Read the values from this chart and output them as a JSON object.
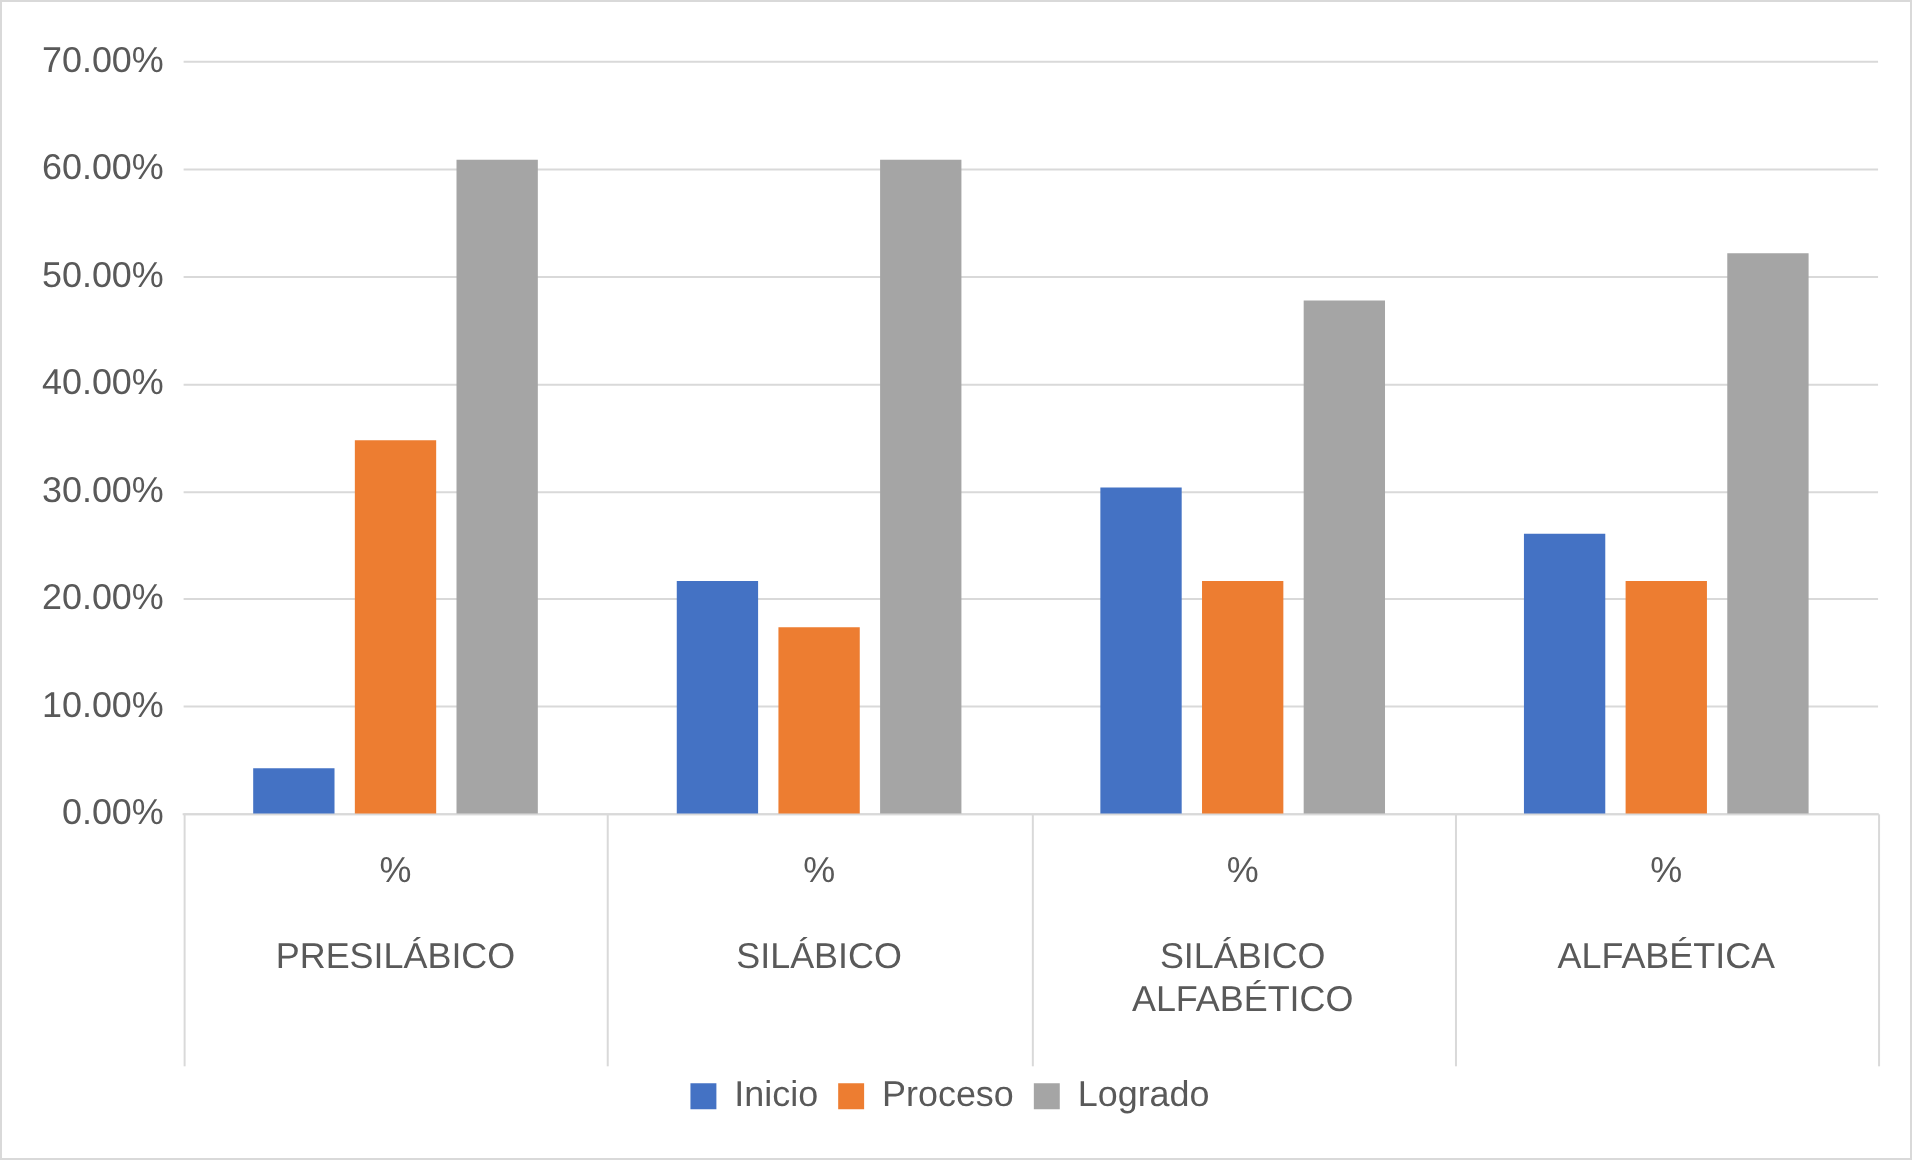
{
  "chart_data": {
    "type": "bar",
    "categories": [
      "%\nPRESILÁBICO",
      "%\nSILÁBICO",
      "%\nSILÁBICO ALFABÉTICO",
      "%\nALFABÉTICA"
    ],
    "series": [
      {
        "name": "Inicio",
        "color": "#4472c4",
        "values": [
          4.3,
          21.7,
          30.4,
          26.1
        ]
      },
      {
        "name": "Proceso",
        "color": "#ed7d31",
        "values": [
          34.8,
          17.4,
          21.7,
          21.7
        ]
      },
      {
        "name": "Logrado",
        "color": "#a5a5a5",
        "values": [
          60.9,
          60.9,
          47.8,
          52.2
        ]
      }
    ],
    "ylim": [
      0,
      70
    ],
    "yticks": [
      {
        "value": 0,
        "label": "0.00%"
      },
      {
        "value": 10,
        "label": "10.00%"
      },
      {
        "value": 20,
        "label": "20.00%"
      },
      {
        "value": 30,
        "label": "30.00%"
      },
      {
        "value": 40,
        "label": "40.00%"
      },
      {
        "value": 50,
        "label": "50.00%"
      },
      {
        "value": 60,
        "label": "60.00%"
      },
      {
        "value": 70,
        "label": "70.00%"
      }
    ],
    "grid": "y",
    "legend": "bottom"
  }
}
